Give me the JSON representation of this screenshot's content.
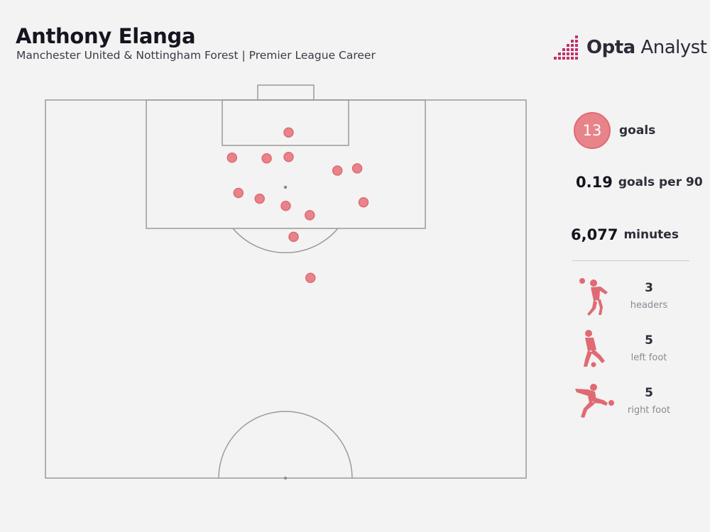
{
  "header": {
    "title": "Anthony Elanga",
    "subtitle": "Manchester United & Nottingham Forest | Premier League Career"
  },
  "logo": {
    "brand_bold": "Opta",
    "brand_rest": " Analyst"
  },
  "colors": {
    "accent": "#e8838a",
    "accent_dark": "#e06a73",
    "line": "#9a9a9a",
    "logo_pink": "#c0306a"
  },
  "stats": {
    "goals_value": "13",
    "goals_label": "goals",
    "per90_value": "0.19",
    "per90_label": "goals per 90",
    "minutes_value": "6,077",
    "minutes_label": "minutes"
  },
  "goal_types": [
    {
      "count": "3",
      "label": "headers",
      "icon": "header-icon"
    },
    {
      "count": "5",
      "label": "left foot",
      "icon": "left-foot-icon"
    },
    {
      "count": "5",
      "label": "right foot",
      "icon": "right-foot-icon"
    }
  ],
  "chart_data": {
    "type": "scatter",
    "title": "Anthony Elanga",
    "subtitle": "Manchester United & Nottingham Forest | Premier League Career",
    "xlabel": "",
    "ylabel": "",
    "x_range": [
      0,
      68
    ],
    "y_range": [
      0,
      52.5
    ],
    "series": [
      {
        "values": [
          {
            "x": 34.4,
            "y": 4.5
          },
          {
            "x": 26.4,
            "y": 8.0
          },
          {
            "x": 31.3,
            "y": 8.1
          },
          {
            "x": 34.4,
            "y": 7.9
          },
          {
            "x": 41.3,
            "y": 9.8
          },
          {
            "x": 44.1,
            "y": 9.5
          },
          {
            "x": 27.3,
            "y": 12.9
          },
          {
            "x": 30.3,
            "y": 13.7
          },
          {
            "x": 34.0,
            "y": 14.7
          },
          {
            "x": 37.4,
            "y": 16.0
          },
          {
            "x": 45.0,
            "y": 14.2
          },
          {
            "x": 35.1,
            "y": 19.0
          },
          {
            "x": 37.5,
            "y": 24.7
          }
        ]
      }
    ]
  }
}
